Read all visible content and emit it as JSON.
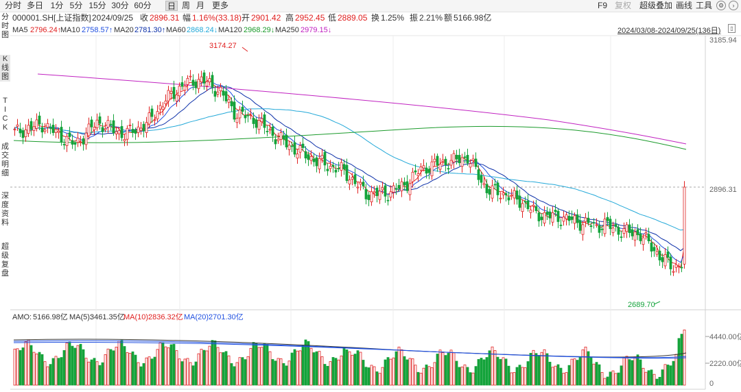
{
  "toolbar": {
    "periods": [
      "分时",
      "多日",
      "1分",
      "5分",
      "15分",
      "30分",
      "60分",
      "日",
      "周",
      "月",
      "更多"
    ],
    "active_period": "日",
    "right_items": {
      "f9": "F9",
      "fuquan": "复权",
      "overlay": "超级叠加",
      "draw": "画线",
      "tools": "工具"
    },
    "settings_icon": "gear-icon",
    "nav_icon": "arrow-icon"
  },
  "info": {
    "code_name": "000001.SH[上证指数]",
    "date": "2024/09/25",
    "close_label": "收",
    "close": "2896.31",
    "change_label": "幅",
    "change": "1.16%(33.18)",
    "open_label": "开",
    "open": "2901.42",
    "high_label": "高",
    "high": "2952.45",
    "low_label": "低",
    "low": "2889.05",
    "turnover_label": "换",
    "turnover": "1.25%",
    "amplitude_label": "振",
    "amplitude": "2.21%",
    "amount_label": "额",
    "amount": "5166.98亿"
  },
  "ma": [
    {
      "label": "MA5",
      "value": "2796.24↑",
      "color": "#e02020"
    },
    {
      "label": "MA10",
      "value": "2758.57↑",
      "color": "#2050e0"
    },
    {
      "label": "MA20",
      "value": "2781.30↑",
      "color": "#0a2ea8"
    },
    {
      "label": "MA60",
      "value": "2868.24↓",
      "color": "#22a8d8"
    },
    {
      "label": "MA120",
      "value": "2968.29↓",
      "color": "#1a9a2a"
    },
    {
      "label": "MA250",
      "value": "2979.15↓",
      "color": "#c020c0"
    }
  ],
  "range_text": "2024/03/08-2024/09/25(136日)",
  "side_tabs": [
    "分时图",
    "K线图",
    "TICK",
    "成交明细",
    "深度资料",
    "超级复盘"
  ],
  "active_side_tab": "K线图",
  "price_axis": {
    "top": "3185.94",
    "current": "2896.31",
    "high_marker": "3174.27",
    "low_marker": "2689.70"
  },
  "volume_info": {
    "amo_label": "AMO:",
    "amo": "5166.98亿",
    "ma5_label": "MA(5):",
    "ma5": "3461.35亿",
    "ma10_label": "MA(10):",
    "ma10": "2836.32亿",
    "ma20_label": "MA(20):",
    "ma20": "2701.30亿"
  },
  "volume_axis": {
    "top": "4440.00亿",
    "mid": "2220.00亿",
    "zero": "0"
  },
  "colors": {
    "up": "#e02020",
    "down": "#14a33b",
    "ma5": "#e02020",
    "ma10": "#2050e0",
    "ma20": "#0a2ea8",
    "ma60": "#22a8d8",
    "ma120": "#1a9a2a",
    "ma250": "#c020c0"
  }
}
